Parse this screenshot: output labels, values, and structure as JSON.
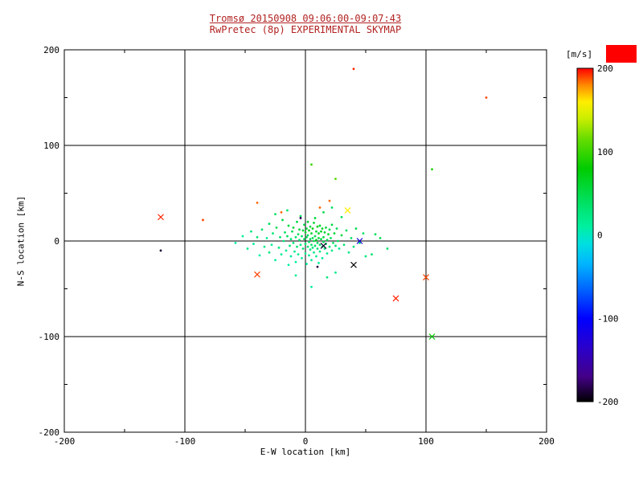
{
  "figure": {
    "background": "#ffffff",
    "title_color": "#b22222",
    "axis_color": "#000000"
  },
  "chart_data": {
    "type": "scatter",
    "title": "Tromsø 20150908 09:06:00-09:07:43",
    "subtitle": "RwPretec (8p) EXPERIMENTAL SKYMAP",
    "xlabel": "E-W location [km]",
    "ylabel": "N-S location [km]",
    "xlim": [
      -200,
      200
    ],
    "ylim": [
      -200,
      200
    ],
    "xticks": [
      -200,
      -100,
      0,
      100,
      200
    ],
    "yticks": [
      -200,
      -100,
      0,
      100,
      200
    ],
    "minor_ticks": [
      -150,
      -50,
      50,
      150
    ],
    "gridlines": [
      -100,
      0,
      100
    ],
    "grid": true,
    "legend_position": "right-colorbar",
    "colorbar": {
      "label": "[m/s]",
      "range": [
        -200,
        200
      ],
      "ticks": [
        200,
        100,
        0,
        -100,
        -200
      ],
      "top_swatch_color": "#ff0000"
    },
    "colormap_stops": [
      [
        -200,
        "#000000"
      ],
      [
        -170,
        "#440088"
      ],
      [
        -135,
        "#2a00cc"
      ],
      [
        -100,
        "#0000ff"
      ],
      [
        -65,
        "#0064ff"
      ],
      [
        -35,
        "#00b4ff"
      ],
      [
        -10,
        "#00e0e0"
      ],
      [
        10,
        "#00f0a0"
      ],
      [
        40,
        "#00e060"
      ],
      [
        80,
        "#00cc00"
      ],
      [
        115,
        "#66dd00"
      ],
      [
        140,
        "#ccee00"
      ],
      [
        160,
        "#ffee00"
      ],
      [
        180,
        "#ff8800"
      ],
      [
        200,
        "#ff0000"
      ]
    ],
    "marker_codes": {
      "0": "dot",
      "1": "x-cross"
    },
    "points_format": [
      "x_km",
      "y_km",
      "velocity_mps",
      "marker"
    ],
    "points": [
      [
        -58,
        -2,
        8,
        0
      ],
      [
        -52,
        5,
        14,
        0
      ],
      [
        -48,
        -8,
        20,
        0
      ],
      [
        -45,
        10,
        28,
        0
      ],
      [
        -43,
        -3,
        12,
        0
      ],
      [
        -40,
        4,
        32,
        0
      ],
      [
        -38,
        -15,
        10,
        0
      ],
      [
        -36,
        12,
        38,
        0
      ],
      [
        -34,
        -6,
        22,
        0
      ],
      [
        -32,
        3,
        16,
        0
      ],
      [
        -30,
        -12,
        26,
        0
      ],
      [
        -30,
        18,
        42,
        0
      ],
      [
        -28,
        -4,
        14,
        0
      ],
      [
        -27,
        8,
        30,
        0
      ],
      [
        -25,
        -20,
        10,
        0
      ],
      [
        -24,
        14,
        46,
        0
      ],
      [
        -22,
        -7,
        24,
        0
      ],
      [
        -21,
        4,
        34,
        0
      ],
      [
        -20,
        -14,
        16,
        0
      ],
      [
        -19,
        22,
        48,
        0
      ],
      [
        -18,
        0,
        26,
        0
      ],
      [
        -17,
        9,
        38,
        0
      ],
      [
        -16,
        -10,
        18,
        0
      ],
      [
        -15,
        5,
        42,
        0
      ],
      [
        -14,
        -25,
        10,
        0
      ],
      [
        -14,
        16,
        52,
        0
      ],
      [
        -13,
        -5,
        28,
        0
      ],
      [
        -12,
        2,
        34,
        0
      ],
      [
        -12,
        -16,
        14,
        0
      ],
      [
        -11,
        10,
        46,
        0
      ],
      [
        -10,
        -2,
        30,
        0
      ],
      [
        -10,
        14,
        58,
        0
      ],
      [
        -9,
        -11,
        20,
        0
      ],
      [
        -8,
        4,
        38,
        0
      ],
      [
        -8,
        -22,
        12,
        0
      ],
      [
        -7,
        20,
        50,
        0
      ],
      [
        -7,
        -6,
        30,
        0
      ],
      [
        -6,
        7,
        42,
        0
      ],
      [
        -6,
        -14,
        18,
        0
      ],
      [
        -5,
        1,
        32,
        0
      ],
      [
        -5,
        12,
        54,
        0
      ],
      [
        -4,
        -4,
        26,
        0
      ],
      [
        -4,
        26,
        46,
        0
      ],
      [
        -3,
        5,
        38,
        0
      ],
      [
        -3,
        -18,
        14,
        0
      ],
      [
        -2,
        11,
        58,
        0
      ],
      [
        -2,
        -8,
        28,
        0
      ],
      [
        -1,
        2,
        42,
        0
      ],
      [
        -1,
        17,
        50,
        0
      ],
      [
        0,
        -3,
        34,
        0
      ],
      [
        0,
        9,
        62,
        0
      ],
      [
        0,
        -13,
        20,
        0
      ],
      [
        1,
        4,
        46,
        0
      ],
      [
        1,
        -24,
        12,
        0
      ],
      [
        1,
        13,
        54,
        0
      ],
      [
        2,
        -6,
        30,
        0
      ],
      [
        2,
        6,
        42,
        0
      ],
      [
        2,
        20,
        58,
        0
      ],
      [
        3,
        -1,
        38,
        0
      ],
      [
        3,
        -15,
        16,
        0
      ],
      [
        3,
        11,
        66,
        0
      ],
      [
        4,
        2,
        46,
        0
      ],
      [
        4,
        -9,
        24,
        0
      ],
      [
        4,
        15,
        54,
        0
      ],
      [
        5,
        -4,
        34,
        0
      ],
      [
        5,
        8,
        62,
        0
      ],
      [
        5,
        -20,
        14,
        0
      ],
      [
        6,
        3,
        42,
        0
      ],
      [
        6,
        13,
        70,
        0
      ],
      [
        6,
        -7,
        28,
        0
      ],
      [
        7,
        0,
        50,
        0
      ],
      [
        7,
        19,
        58,
        0
      ],
      [
        7,
        -12,
        20,
        0
      ],
      [
        8,
        5,
        46,
        0
      ],
      [
        8,
        -5,
        34,
        0
      ],
      [
        8,
        24,
        54,
        0
      ],
      [
        9,
        1,
        66,
        0
      ],
      [
        9,
        -16,
        16,
        0
      ],
      [
        9,
        10,
        58,
        0
      ],
      [
        10,
        -2,
        42,
        0
      ],
      [
        10,
        15,
        70,
        0
      ],
      [
        10,
        -8,
        28,
        0
      ],
      [
        11,
        3,
        54,
        0
      ],
      [
        11,
        -23,
        12,
        0
      ],
      [
        11,
        8,
        62,
        0
      ],
      [
        12,
        -4,
        38,
        0
      ],
      [
        12,
        16,
        58,
        0
      ],
      [
        12,
        -11,
        22,
        0
      ],
      [
        13,
        2,
        50,
        0
      ],
      [
        13,
        10,
        66,
        0
      ],
      [
        14,
        -6,
        34,
        0
      ],
      [
        14,
        -18,
        14,
        0
      ],
      [
        14,
        13,
        62,
        0
      ],
      [
        15,
        4,
        54,
        0
      ],
      [
        15,
        -1,
        42,
        0
      ],
      [
        16,
        -8,
        28,
        0
      ],
      [
        16,
        9,
        58,
        0
      ],
      [
        17,
        -3,
        38,
        0
      ],
      [
        17,
        14,
        54,
        0
      ],
      [
        18,
        1,
        46,
        0
      ],
      [
        18,
        -13,
        20,
        0
      ],
      [
        19,
        7,
        62,
        0
      ],
      [
        20,
        -6,
        30,
        0
      ],
      [
        20,
        12,
        50,
        0
      ],
      [
        21,
        3,
        42,
        0
      ],
      [
        22,
        -10,
        22,
        0
      ],
      [
        22,
        17,
        54,
        0
      ],
      [
        23,
        -2,
        38,
        0
      ],
      [
        24,
        8,
        58,
        0
      ],
      [
        25,
        -5,
        28,
        0
      ],
      [
        26,
        13,
        46,
        0
      ],
      [
        27,
        0,
        42,
        0
      ],
      [
        28,
        -8,
        18,
        0
      ],
      [
        30,
        6,
        50,
        0
      ],
      [
        32,
        -4,
        32,
        0
      ],
      [
        34,
        11,
        42,
        0
      ],
      [
        36,
        -12,
        22,
        0
      ],
      [
        38,
        3,
        36,
        0
      ],
      [
        40,
        -6,
        28,
        0
      ],
      [
        42,
        13,
        46,
        0
      ],
      [
        45,
        -2,
        32,
        0
      ],
      [
        48,
        8,
        38,
        0
      ],
      [
        50,
        -16,
        26,
        0
      ],
      [
        55,
        -14,
        36,
        0
      ],
      [
        58,
        7,
        42,
        0
      ],
      [
        62,
        3,
        45,
        0
      ],
      [
        68,
        -8,
        35,
        0
      ],
      [
        18,
        -38,
        26,
        0
      ],
      [
        25,
        -33,
        22,
        0
      ],
      [
        -8,
        -36,
        18,
        0
      ],
      [
        5,
        -48,
        14,
        0
      ],
      [
        -25,
        28,
        40,
        0
      ],
      [
        -15,
        32,
        36,
        0
      ],
      [
        30,
        25,
        44,
        0
      ],
      [
        15,
        30,
        48,
        0
      ],
      [
        22,
        35,
        40,
        0
      ],
      [
        -120,
        25,
        195,
        1
      ],
      [
        -85,
        22,
        190,
        0
      ],
      [
        -120,
        -10,
        -190,
        0
      ],
      [
        -40,
        -35,
        190,
        1
      ],
      [
        -40,
        40,
        185,
        0
      ],
      [
        -20,
        30,
        185,
        0
      ],
      [
        12,
        35,
        185,
        0
      ],
      [
        20,
        42,
        185,
        0
      ],
      [
        5,
        80,
        100,
        0
      ],
      [
        25,
        65,
        110,
        0
      ],
      [
        35,
        32,
        160,
        1
      ],
      [
        40,
        180,
        195,
        0
      ],
      [
        150,
        150,
        190,
        0
      ],
      [
        45,
        0,
        -120,
        1
      ],
      [
        40,
        -25,
        -200,
        1
      ],
      [
        75,
        -60,
        195,
        1
      ],
      [
        100,
        -38,
        190,
        1
      ],
      [
        105,
        -100,
        80,
        1
      ],
      [
        105,
        75,
        90,
        0
      ],
      [
        15,
        -5,
        -190,
        1
      ],
      [
        10,
        -27,
        -185,
        0
      ],
      [
        -4,
        24,
        -180,
        0
      ]
    ]
  }
}
